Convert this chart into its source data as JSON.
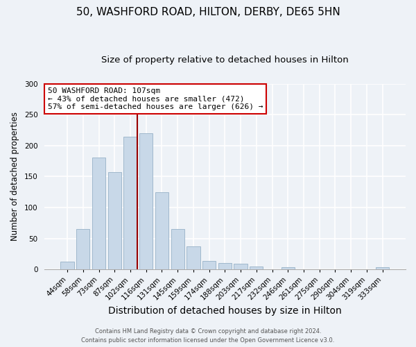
{
  "title": "50, WASHFORD ROAD, HILTON, DERBY, DE65 5HN",
  "subtitle": "Size of property relative to detached houses in Hilton",
  "xlabel": "Distribution of detached houses by size in Hilton",
  "ylabel": "Number of detached properties",
  "bar_labels": [
    "44sqm",
    "58sqm",
    "73sqm",
    "87sqm",
    "102sqm",
    "116sqm",
    "131sqm",
    "145sqm",
    "159sqm",
    "174sqm",
    "188sqm",
    "203sqm",
    "217sqm",
    "232sqm",
    "246sqm",
    "261sqm",
    "275sqm",
    "290sqm",
    "304sqm",
    "319sqm",
    "333sqm"
  ],
  "bar_values": [
    13,
    65,
    181,
    157,
    214,
    220,
    125,
    65,
    37,
    14,
    10,
    9,
    5,
    0,
    4,
    0,
    0,
    0,
    0,
    0,
    3
  ],
  "bar_color": "#c8d8e8",
  "bar_edge_color": "#a0b8cc",
  "vline_index": 4,
  "vline_color": "#990000",
  "annotation_title": "50 WASHFORD ROAD: 107sqm",
  "annotation_line1": "← 43% of detached houses are smaller (472)",
  "annotation_line2": "57% of semi-detached houses are larger (626) →",
  "annotation_box_color": "#ffffff",
  "annotation_border_color": "#cc0000",
  "ylim": [
    0,
    300
  ],
  "yticks": [
    0,
    50,
    100,
    150,
    200,
    250,
    300
  ],
  "footer1": "Contains HM Land Registry data © Crown copyright and database right 2024.",
  "footer2": "Contains public sector information licensed under the Open Government Licence v3.0.",
  "background_color": "#eef2f7",
  "plot_bg_color": "#eef2f7",
  "title_fontsize": 11,
  "subtitle_fontsize": 9.5,
  "xlabel_fontsize": 10,
  "ylabel_fontsize": 8.5,
  "tick_fontsize": 7.5,
  "annot_fontsize": 8,
  "footer_fontsize": 6
}
